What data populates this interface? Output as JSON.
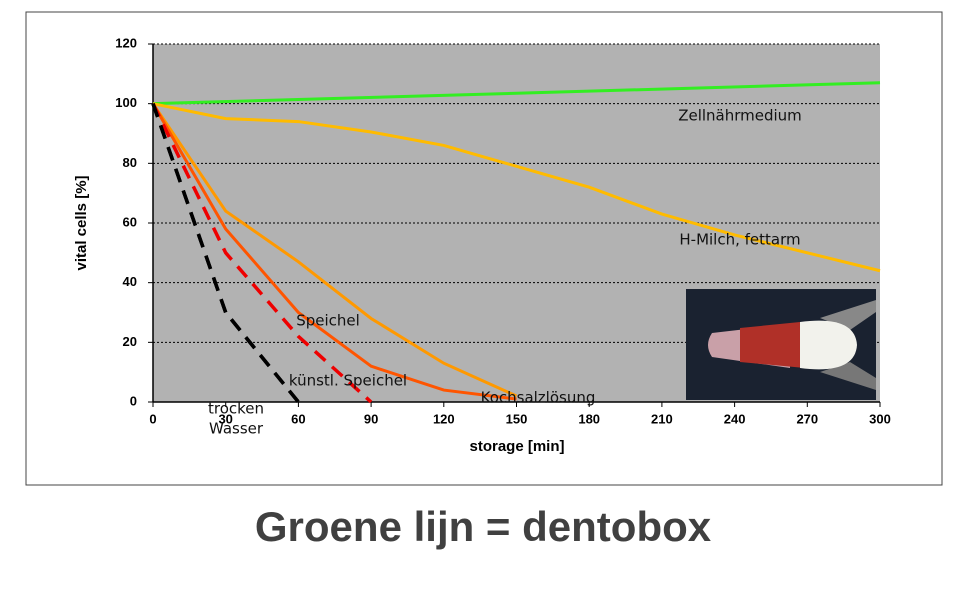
{
  "chart_data": {
    "type": "line",
    "xlabel": "storage [min]",
    "ylabel": "vital cells [%]",
    "footer": "Groene lijn = dentobox",
    "xlim": [
      0,
      300
    ],
    "xticks": [
      0,
      30,
      60,
      90,
      120,
      150,
      180,
      210,
      240,
      270,
      300
    ],
    "ylim": [
      0,
      120
    ],
    "yticks": [
      0,
      20,
      40,
      60,
      80,
      100,
      120
    ],
    "grid": true,
    "series": [
      {
        "name": "Zellnährmedium",
        "color": "#33ee22",
        "dashed": false,
        "x": [
          0,
          300
        ],
        "values": [
          100,
          107
        ]
      },
      {
        "name": "H-Milch, fettarm",
        "color": "#ffbb00",
        "dashed": false,
        "x": [
          0,
          30,
          60,
          90,
          120,
          150,
          180,
          210,
          240,
          270,
          300
        ],
        "values": [
          100,
          95,
          94,
          90.5,
          86,
          79,
          72,
          63,
          56,
          50,
          44
        ]
      },
      {
        "name": "Kochsalzlösung",
        "color": "#ff9900",
        "dashed": false,
        "x": [
          0,
          30,
          60,
          90,
          120,
          150
        ],
        "values": [
          100,
          64,
          47,
          28,
          13,
          2
        ]
      },
      {
        "name": "Speichel",
        "color": "#ff5500",
        "dashed": false,
        "x": [
          0,
          30,
          60,
          90,
          120,
          150
        ],
        "values": [
          100,
          58,
          30,
          12,
          4,
          1
        ]
      },
      {
        "name": "künstl. Speichel",
        "color": "#ee0000",
        "dashed": true,
        "x": [
          0,
          30,
          60,
          90
        ],
        "values": [
          100,
          50,
          22,
          0
        ]
      },
      {
        "name": "trocken",
        "color": "#000000",
        "dashed": true,
        "x": [
          0,
          30,
          60
        ],
        "values": [
          100,
          30,
          0
        ]
      },
      {
        "name": "Wasser",
        "color": "#000000",
        "dashed": true,
        "x": [
          0,
          30,
          60
        ],
        "values": [
          100,
          30,
          0
        ]
      }
    ]
  }
}
